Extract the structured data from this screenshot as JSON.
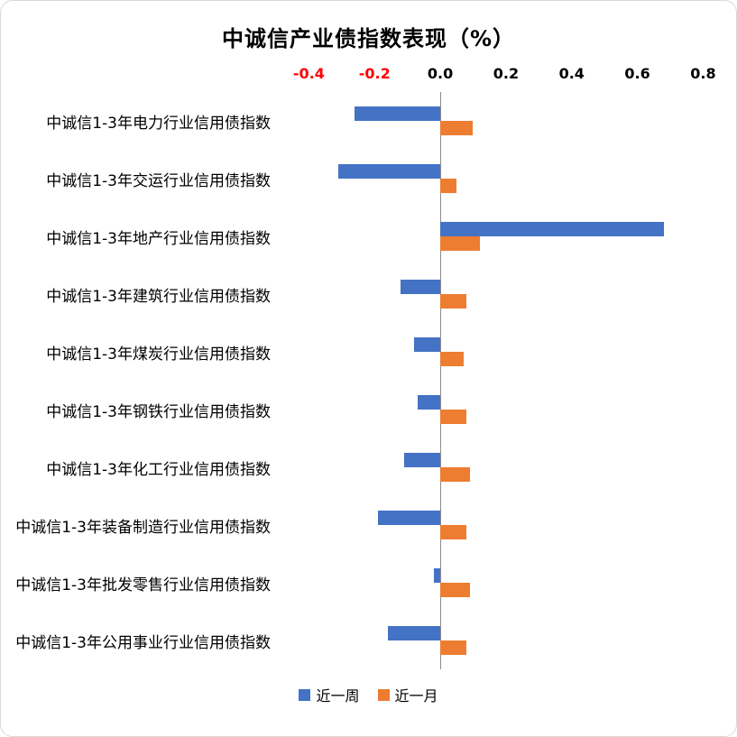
{
  "chart_data": {
    "type": "bar",
    "orientation": "horizontal",
    "title": "中诚信产业债指数表现（%）",
    "categories": [
      "中诚信1-3年电力行业信用债指数",
      "中诚信1-3年交运行业信用债指数",
      "中诚信1-3年地产行业信用债指数",
      "中诚信1-3年建筑行业信用债指数",
      "中诚信1-3年煤炭行业信用债指数",
      "中诚信1-3年钢铁行业信用债指数",
      "中诚信1-3年化工行业信用债指数",
      "中诚信1-3年装备制造行业信用债指数",
      "中诚信1-3年批发零售行业信用债指数",
      "中诚信1-3年公用事业行业信用债指数"
    ],
    "series": [
      {
        "name": "近一周",
        "color": "#4472C4",
        "values": [
          -0.26,
          -0.31,
          0.68,
          -0.12,
          -0.08,
          -0.07,
          -0.11,
          -0.19,
          -0.02,
          -0.16
        ]
      },
      {
        "name": "近一月",
        "color": "#ED7D31",
        "values": [
          0.1,
          0.05,
          0.12,
          0.08,
          0.07,
          0.08,
          0.09,
          0.08,
          0.09,
          0.08
        ]
      }
    ],
    "x_axis": {
      "min": -0.4,
      "max": 0.8,
      "tick_step": 0.2,
      "ticks": [
        "-0.4",
        "-0.2",
        "0.0",
        "0.2",
        "0.4",
        "0.6",
        "0.8"
      ],
      "tick_color": "#000000",
      "negative_tick_color": "#FF0000",
      "position": "top"
    },
    "legend": {
      "position": "bottom",
      "entries": [
        "近一周",
        "近一月"
      ]
    },
    "grid": false
  }
}
